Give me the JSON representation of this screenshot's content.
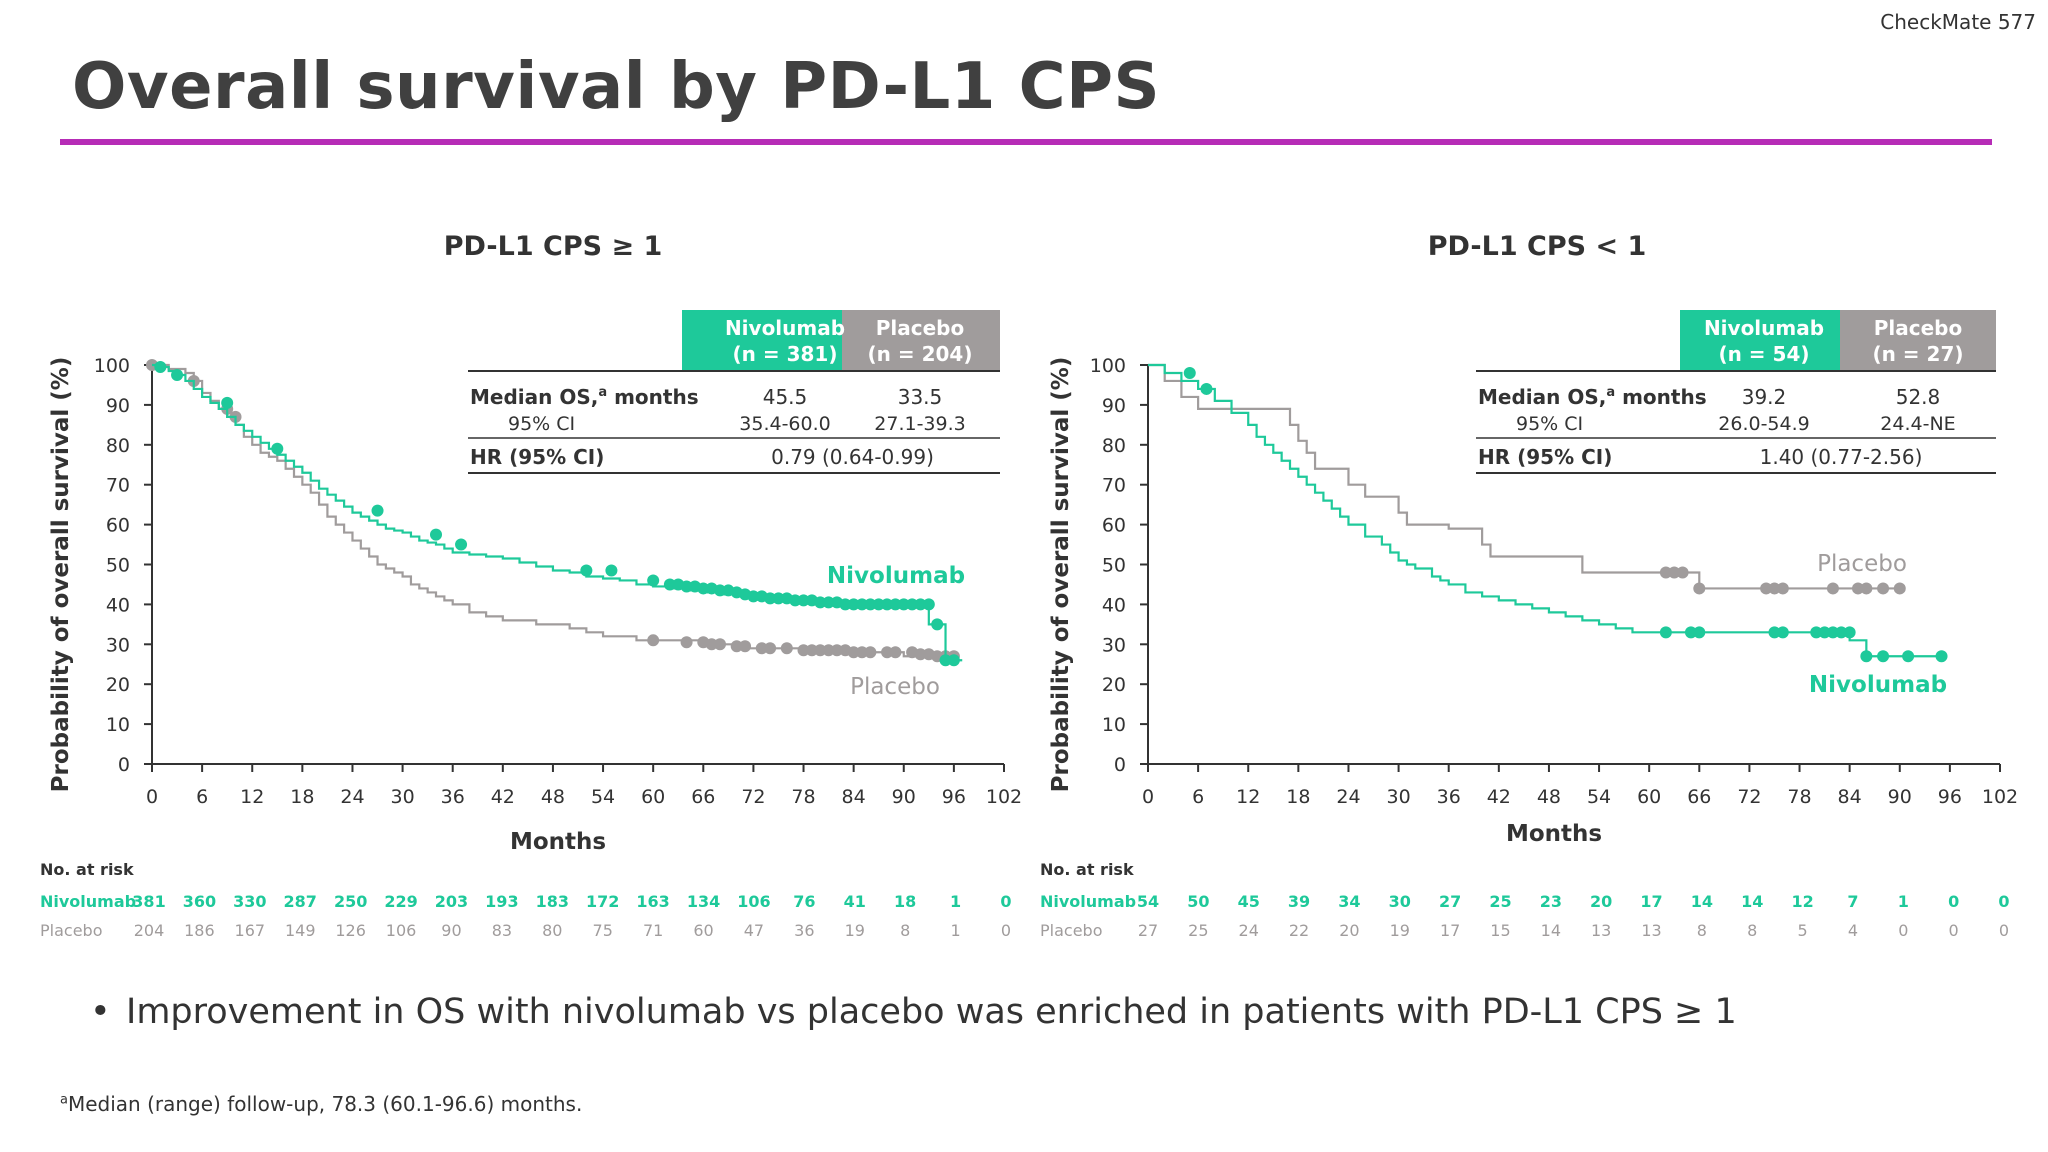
{
  "header": {
    "tag": "CheckMate 577",
    "title": "Overall survival by PD-L1 CPS"
  },
  "colors": {
    "accent": "#b62cb6",
    "nivolumab": "#1ec99a",
    "placebo": "#a09c9c"
  },
  "bullet": "Improvement in OS with nivolumab vs placebo was enriched in patients with PD-L1 CPS ≥ 1",
  "footnote": {
    "sup": "a",
    "text": "Median (range) follow-up, 78.3 (60.1-96.6) months."
  },
  "chart_data": [
    {
      "type": "line",
      "title": "PD-L1 CPS ≥ 1",
      "xlabel": "Months",
      "ylabel": "Probability of overall survival (%)",
      "xlim": [
        0,
        102
      ],
      "ylim": [
        0,
        100
      ],
      "xticks": [
        0,
        6,
        12,
        18,
        24,
        30,
        36,
        42,
        48,
        54,
        60,
        66,
        72,
        78,
        84,
        90,
        96,
        102
      ],
      "yticks": [
        0,
        10,
        20,
        30,
        40,
        50,
        60,
        70,
        80,
        90,
        100
      ],
      "table": {
        "head": [
          "Nivolumab",
          "(n = 381)",
          "Placebo",
          "(n = 204)"
        ],
        "rows": [
          {
            "label": "Median OS,",
            "sup": "a",
            "label_rest": " months",
            "niv": "45.5",
            "pbo": "33.5"
          },
          {
            "label": "95% CI",
            "niv": "35.4-60.0",
            "pbo": "27.1-39.3"
          },
          {
            "label": "HR (95% CI)",
            "hr": "0.79 (0.64-0.99)"
          }
        ]
      },
      "series": [
        {
          "name": "Nivolumab",
          "x": [
            0,
            1,
            2,
            3,
            4,
            5,
            6,
            7,
            8,
            9,
            10,
            11,
            12,
            13,
            14,
            15,
            16,
            17,
            18,
            19,
            20,
            21,
            22,
            23,
            24,
            25,
            26,
            27,
            28,
            29,
            30,
            31,
            32,
            33,
            34,
            35,
            36,
            38,
            40,
            42,
            44,
            46,
            48,
            50,
            52,
            54,
            56,
            58,
            60,
            62,
            64,
            66,
            68,
            70,
            72,
            74,
            76,
            78,
            80,
            82,
            84,
            86,
            88,
            90,
            92,
            93,
            93,
            95,
            95,
            97
          ],
          "y": [
            100,
            99.5,
            98.5,
            97.5,
            96,
            94,
            92,
            90.5,
            89,
            87,
            85,
            83.5,
            82,
            80.5,
            79,
            77.5,
            76,
            74.5,
            73,
            71,
            69,
            67.5,
            66,
            64.5,
            63,
            62,
            61,
            60,
            59,
            58.5,
            58,
            57,
            56,
            55.5,
            55,
            54,
            53,
            52.5,
            52,
            51.5,
            50.5,
            49.5,
            48.5,
            48,
            47,
            46.5,
            46,
            45,
            44.5,
            44,
            43.5,
            43,
            42.5,
            42,
            41.5,
            41.5,
            41,
            41,
            40.5,
            40.5,
            40,
            40,
            40,
            40,
            40,
            40,
            35,
            35,
            26,
            26
          ],
          "censor_x": [
            1,
            3,
            9,
            15,
            27,
            34,
            37,
            52,
            55,
            60,
            62,
            63,
            64,
            65,
            66,
            67,
            68,
            69,
            70,
            71,
            72,
            73,
            74,
            75,
            76,
            77,
            78,
            79,
            80,
            81,
            82,
            83,
            84,
            85,
            86,
            87,
            88,
            89,
            90,
            91,
            92,
            93,
            94,
            95,
            96
          ],
          "censor_y": [
            99.5,
            97.5,
            90.5,
            79,
            63.5,
            57.5,
            55,
            48.5,
            48.5,
            46,
            45,
            45,
            44.5,
            44.5,
            44,
            44,
            43.5,
            43.5,
            43,
            42.5,
            42,
            42,
            41.5,
            41.5,
            41.5,
            41,
            41,
            41,
            40.5,
            40.5,
            40.5,
            40,
            40,
            40,
            40,
            40,
            40,
            40,
            40,
            40,
            40,
            40,
            35,
            26,
            26
          ]
        },
        {
          "name": "Placebo",
          "x": [
            0,
            2,
            4,
            5,
            6,
            7,
            8,
            9,
            10,
            11,
            12,
            13,
            14,
            15,
            16,
            17,
            18,
            19,
            20,
            21,
            22,
            23,
            24,
            25,
            26,
            27,
            28,
            29,
            30,
            31,
            32,
            33,
            34,
            35,
            36,
            38,
            40,
            42,
            44,
            46,
            48,
            50,
            52,
            54,
            56,
            58,
            60,
            62,
            64,
            66,
            68,
            70,
            72,
            74,
            76,
            78,
            80,
            82,
            84,
            86,
            88,
            90,
            92,
            94,
            96
          ],
          "y": [
            100,
            99,
            98,
            96,
            93,
            91,
            89,
            87,
            85,
            82,
            80,
            78,
            77,
            76,
            74,
            72,
            70,
            68,
            65,
            62,
            60,
            58,
            56,
            54,
            52,
            50,
            49,
            48,
            47,
            45,
            44,
            43,
            42,
            41,
            40,
            38,
            37,
            36,
            36,
            35,
            35,
            34,
            33,
            32,
            32,
            31,
            31,
            31,
            31,
            30,
            30,
            29,
            29,
            29,
            29,
            28,
            28,
            28,
            28,
            28,
            28,
            27,
            27,
            27,
            27
          ],
          "censor_x": [
            0,
            5,
            9,
            10,
            60,
            64,
            66,
            67,
            68,
            70,
            71,
            73,
            74,
            76,
            78,
            79,
            80,
            81,
            82,
            83,
            84,
            85,
            86,
            88,
            89,
            91,
            92,
            93,
            94,
            95,
            96
          ],
          "censor_y": [
            100,
            96,
            89,
            87,
            31,
            30.5,
            30.5,
            30,
            30,
            29.5,
            29.5,
            29,
            29,
            29,
            28.5,
            28.5,
            28.5,
            28.5,
            28.5,
            28.5,
            28,
            28,
            28,
            28,
            28,
            28,
            27.5,
            27.5,
            27,
            27,
            27
          ]
        }
      ],
      "curve_labels": {
        "nivolumab": "Nivolumab",
        "placebo": "Placebo"
      },
      "risk": {
        "header": "No. at risk",
        "nivolumab": {
          "label": "Nivolumab",
          "values": [
            "381",
            "360",
            "330",
            "287",
            "250",
            "229",
            "203",
            "193",
            "183",
            "172",
            "163",
            "134",
            "106",
            "76",
            "41",
            "18",
            "1",
            "0"
          ]
        },
        "placebo": {
          "label": "Placebo",
          "values": [
            "204",
            "186",
            "167",
            "149",
            "126",
            "106",
            "90",
            "83",
            "80",
            "75",
            "71",
            "60",
            "47",
            "36",
            "19",
            "8",
            "1",
            "0"
          ]
        }
      }
    },
    {
      "type": "line",
      "title": "PD-L1 CPS < 1",
      "xlabel": "Months",
      "ylabel": "Probability of overall survival (%)",
      "xlim": [
        0,
        102
      ],
      "ylim": [
        0,
        100
      ],
      "xticks": [
        0,
        6,
        12,
        18,
        24,
        30,
        36,
        42,
        48,
        54,
        60,
        66,
        72,
        78,
        84,
        90,
        96,
        102
      ],
      "yticks": [
        0,
        10,
        20,
        30,
        40,
        50,
        60,
        70,
        80,
        90,
        100
      ],
      "table": {
        "head": [
          "Nivolumab",
          "(n = 54)",
          "Placebo",
          "(n = 27)"
        ],
        "rows": [
          {
            "label": "Median OS,",
            "sup": "a",
            "label_rest": " months",
            "niv": "39.2",
            "pbo": "52.8"
          },
          {
            "label": "95% CI",
            "niv": "26.0-54.9",
            "pbo": "24.4-NE"
          },
          {
            "label": "HR (95% CI)",
            "hr": "1.40 (0.77-2.56)"
          }
        ]
      },
      "series": [
        {
          "name": "Nivolumab",
          "x": [
            0,
            2,
            4,
            6,
            8,
            10,
            12,
            13,
            14,
            15,
            16,
            17,
            18,
            19,
            20,
            21,
            22,
            23,
            24,
            26,
            28,
            29,
            30,
            31,
            32,
            34,
            35,
            36,
            38,
            40,
            42,
            44,
            46,
            48,
            50,
            52,
            54,
            56,
            58,
            60,
            62,
            66,
            70,
            74,
            78,
            82,
            84,
            86,
            90,
            95
          ],
          "y": [
            100,
            98,
            96,
            94,
            91,
            88,
            85,
            82,
            80,
            78,
            76,
            74,
            72,
            70,
            68,
            66,
            64,
            62,
            60,
            57,
            55,
            53,
            51,
            50,
            49,
            47,
            46,
            45,
            43,
            42,
            41,
            40,
            39,
            38,
            37,
            36,
            35,
            34,
            33,
            33,
            33,
            33,
            33,
            33,
            33,
            33,
            31,
            27,
            27,
            27
          ],
          "censor_x": [
            5,
            7,
            62,
            65,
            66,
            75,
            76,
            80,
            81,
            82,
            83,
            84,
            86,
            88,
            91,
            95
          ],
          "censor_y": [
            98,
            94,
            33,
            33,
            33,
            33,
            33,
            33,
            33,
            33,
            33,
            33,
            27,
            27,
            27,
            27
          ]
        },
        {
          "name": "Placebo",
          "x": [
            0,
            2,
            4,
            6,
            8,
            12,
            16,
            17,
            18,
            19,
            20,
            24,
            26,
            30,
            31,
            33,
            36,
            40,
            41,
            44,
            48,
            52,
            56,
            60,
            62,
            64,
            66,
            70,
            74,
            78,
            82,
            86,
            88,
            90
          ],
          "y": [
            100,
            96,
            92,
            89,
            89,
            89,
            89,
            85,
            81,
            78,
            74,
            70,
            67,
            63,
            60,
            60,
            59,
            55,
            52,
            52,
            52,
            48,
            48,
            48,
            48,
            48,
            44,
            44,
            44,
            44,
            44,
            44,
            44,
            44
          ],
          "censor_x": [
            62,
            63,
            64,
            66,
            74,
            75,
            76,
            82,
            85,
            86,
            88,
            90
          ],
          "censor_y": [
            48,
            48,
            48,
            44,
            44,
            44,
            44,
            44,
            44,
            44,
            44,
            44
          ]
        }
      ],
      "curve_labels": {
        "nivolumab": "Nivolumab",
        "placebo": "Placebo"
      },
      "risk": {
        "header": "No. at risk",
        "nivolumab": {
          "label": "Nivolumab",
          "values": [
            "54",
            "50",
            "45",
            "39",
            "34",
            "30",
            "27",
            "25",
            "23",
            "20",
            "17",
            "14",
            "14",
            "12",
            "7",
            "1",
            "0",
            "0"
          ]
        },
        "placebo": {
          "label": "Placebo",
          "values": [
            "27",
            "25",
            "24",
            "22",
            "20",
            "19",
            "17",
            "15",
            "14",
            "13",
            "13",
            "8",
            "8",
            "5",
            "4",
            "0",
            "0",
            "0"
          ]
        }
      }
    }
  ]
}
